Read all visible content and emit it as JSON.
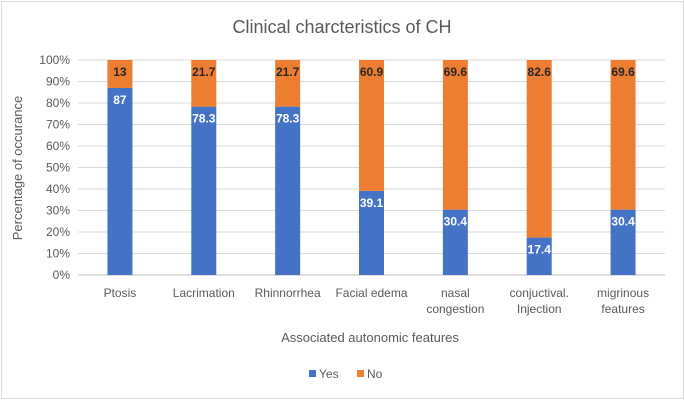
{
  "chart_data": {
    "type": "bar",
    "stacked": true,
    "percent": true,
    "title": "Clinical charcteristics of CH",
    "xlabel": "Associated autonomic features",
    "ylabel": "Percentage of occurance",
    "ylim": [
      0,
      100
    ],
    "yticks": [
      "0%",
      "10%",
      "20%",
      "30%",
      "40%",
      "50%",
      "60%",
      "70%",
      "80%",
      "90%",
      "100%"
    ],
    "categories": [
      [
        "Ptosis"
      ],
      [
        "Lacrimation"
      ],
      [
        "Rhinnorrhea"
      ],
      [
        "Facial edema"
      ],
      [
        "nasal",
        "congestion"
      ],
      [
        "conjuctival.",
        "Injection"
      ],
      [
        "migrinous",
        "features"
      ]
    ],
    "series": [
      {
        "name": "Yes",
        "color": "#4472c4",
        "label_color": "#ffffff",
        "values": [
          87,
          78.3,
          78.3,
          39.1,
          30.4,
          17.4,
          30.4
        ]
      },
      {
        "name": "No",
        "color": "#ed7d31",
        "label_color": "#262626",
        "values": [
          13,
          21.7,
          21.7,
          60.9,
          69.6,
          82.6,
          69.6
        ]
      }
    ],
    "legend": {
      "position": "bottom"
    },
    "grid": true
  }
}
